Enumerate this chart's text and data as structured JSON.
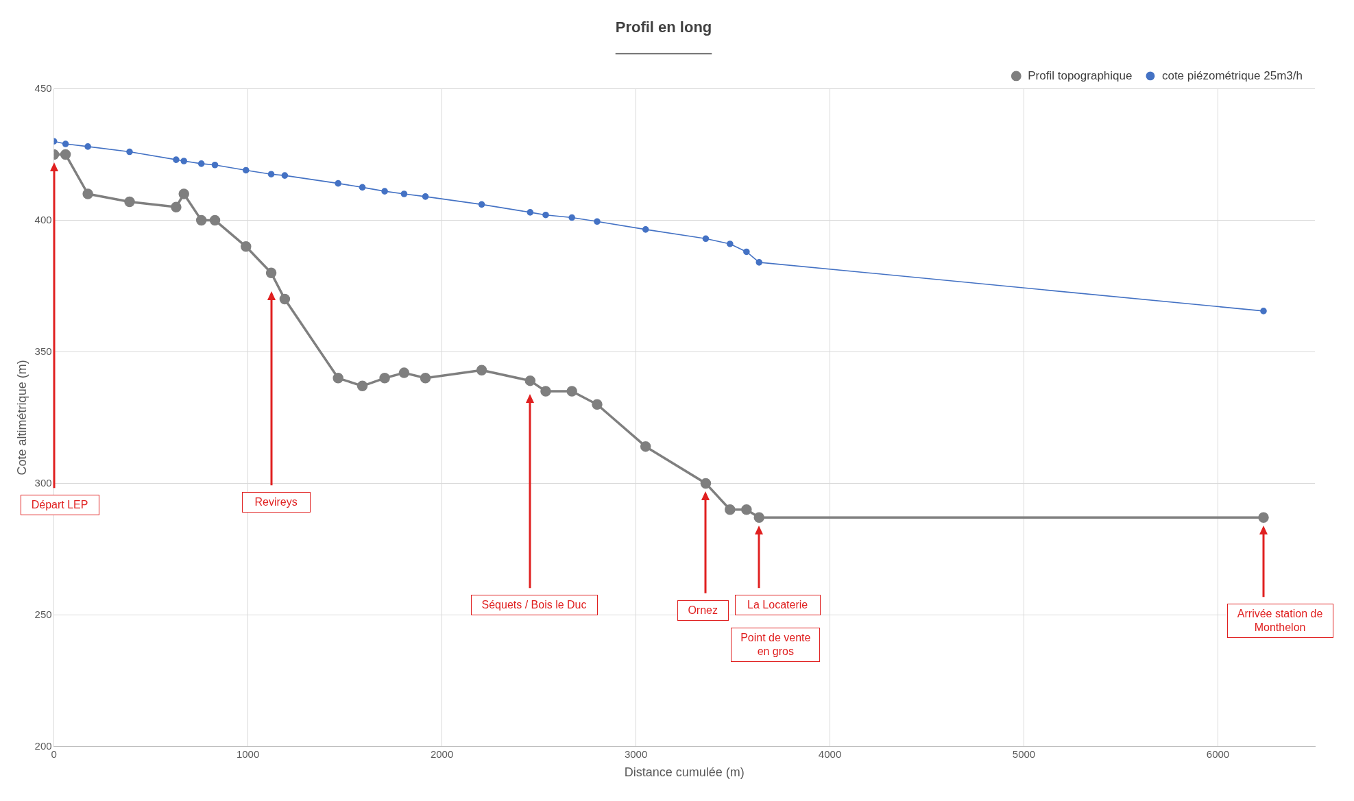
{
  "chart_data": {
    "type": "line",
    "title": "Profil en long",
    "xlabel": "Distance cumulée (m)",
    "ylabel": "Cote altimétrique (m)",
    "xlim": [
      0,
      6500
    ],
    "xticks": [
      0,
      1000,
      2000,
      3000,
      4000,
      5000,
      6000
    ],
    "ylim": [
      200,
      450
    ],
    "yticks": [
      200,
      250,
      300,
      350,
      400,
      450
    ],
    "grid": true,
    "legend": "top right",
    "marker": "circle",
    "line_style": "solid",
    "series": [
      {
        "name": "Profil topographique",
        "color": "#7f7f7f",
        "x": [
          0,
          60,
          175,
          390,
          630,
          670,
          760,
          830,
          990,
          1120,
          1190,
          1465,
          1590,
          1705,
          1805,
          1915,
          2205,
          2455,
          2535,
          2670,
          2800,
          3050,
          3360,
          3485,
          3570,
          3635,
          6235
        ],
        "values": [
          425,
          425,
          410,
          407,
          405,
          410,
          400,
          400,
          390,
          380,
          370,
          340,
          337,
          340,
          342,
          340,
          343,
          339,
          335,
          335,
          330,
          314,
          300,
          290,
          290,
          287,
          287
        ]
      },
      {
        "name": "cote piézométrique 25m3/h",
        "color": "#4472c4",
        "x": [
          0,
          60,
          175,
          390,
          630,
          670,
          760,
          830,
          990,
          1120,
          1190,
          1465,
          1590,
          1705,
          1805,
          1915,
          2205,
          2455,
          2535,
          2670,
          2800,
          3050,
          3360,
          3485,
          3570,
          3635,
          6235
        ],
        "values": [
          430,
          429,
          428,
          426,
          423,
          422.5,
          421.5,
          421,
          419,
          417.5,
          417,
          414,
          412.5,
          411,
          410,
          409,
          406,
          403,
          402,
          401,
          399.5,
          396.5,
          393,
          391,
          388,
          384,
          365.5
        ]
      }
    ],
    "annotations": [
      "Départ LEP",
      "Revireys",
      "Séquets / Bois le Duc",
      "Ornez",
      "La Locaterie",
      "Point de vente en gros",
      "Arrivée station de Monthelon"
    ]
  }
}
